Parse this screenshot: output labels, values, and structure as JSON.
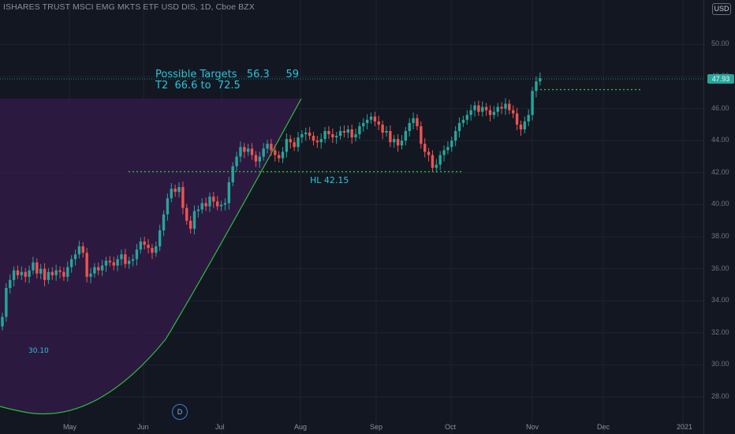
{
  "header": {
    "title": "ISHARES TRUST MSCI EMG MKTS ETF USD DIS, 1D, Cboe BZX",
    "currency": "USD"
  },
  "last_price_label": "47.93",
  "annotations": {
    "targets_line1": "Possible Targets   56.3     59",
    "targets_line2": "T2  66.6 to  72.5",
    "hl_label": "HL 42.15",
    "arc_low_label": "30.10",
    "d_badge": "D"
  },
  "colors": {
    "background": "#131722",
    "up": "#26a69a",
    "down": "#ef5350",
    "arc_fill": "#311a45",
    "arc_stroke": "#2ebd3e",
    "level_line": "#2ebd3e",
    "note_text": "#26c6da"
  },
  "chart_data": {
    "type": "candlestick",
    "title": "ISHARES TRUST MSCI EMG MKTS ETF USD DIS, 1D, Cboe BZX",
    "ylim": [
      27,
      52.5
    ],
    "yticks": [
      28,
      30,
      32,
      34,
      36,
      38,
      40,
      42,
      44,
      46,
      48,
      50
    ],
    "x_month_ticks": [
      {
        "label": "May",
        "date": "2020-05-01"
      },
      {
        "label": "Jun",
        "date": "2020-06-01"
      },
      {
        "label": "Jul",
        "date": "2020-07-01"
      },
      {
        "label": "Aug",
        "date": "2020-08-01"
      },
      {
        "label": "Sep",
        "date": "2020-09-01"
      },
      {
        "label": "Oct",
        "date": "2020-10-01"
      },
      {
        "label": "Nov",
        "date": "2020-11-01"
      },
      {
        "label": "Dec",
        "date": "2020-12-01"
      },
      {
        "label": "2021",
        "date": "2021-01-01"
      }
    ],
    "grid": true,
    "closes": [
      33.0,
      34.8,
      35.3,
      35.9,
      35.6,
      35.8,
      35.5,
      35.9,
      36.4,
      35.7,
      36.0,
      35.3,
      35.8,
      35.6,
      35.9,
      35.8,
      35.5,
      36.1,
      36.6,
      36.9,
      37.4,
      37.0,
      35.5,
      35.7,
      36.1,
      35.9,
      36.2,
      36.5,
      36.4,
      36.2,
      36.6,
      36.9,
      36.3,
      36.5,
      36.6,
      37.2,
      37.7,
      37.5,
      37.3,
      37.0,
      37.4,
      38.4,
      39.4,
      40.4,
      41.0,
      40.8,
      41.1,
      39.8,
      39.0,
      38.5,
      39.6,
      39.7,
      40.1,
      39.9,
      40.5,
      40.2,
      39.9,
      40.0,
      40.1,
      41.4,
      42.4,
      43.0,
      43.6,
      43.3,
      43.5,
      43.1,
      42.7,
      43.0,
      43.5,
      43.8,
      43.4,
      43.1,
      42.9,
      43.3,
      44.1,
      43.9,
      43.6,
      44.2,
      44.4,
      44.5,
      44.3,
      44.0,
      43.9,
      44.1,
      44.6,
      44.4,
      44.2,
      44.3,
      44.6,
      44.5,
      44.7,
      44.2,
      44.4,
      44.9,
      45.1,
      45.3,
      45.5,
      45.2,
      45.0,
      44.5,
      44.6,
      43.9,
      44.1,
      43.7,
      44.0,
      44.6,
      45.1,
      45.4,
      44.9,
      43.8,
      43.3,
      43.1,
      42.3,
      42.5,
      43.1,
      43.4,
      43.6,
      44.0,
      44.6,
      45.1,
      45.3,
      45.6,
      45.9,
      46.2,
      45.8,
      46.1,
      45.9,
      45.6,
      45.8,
      46.1,
      46.0,
      46.3,
      45.9,
      45.7,
      45.0,
      44.7,
      45.2,
      45.6,
      47.1,
      47.7,
      47.9
    ],
    "annotations": [
      {
        "text": "HL 42.15",
        "value": 42.15
      },
      {
        "text": "30.10",
        "value": 30.1
      },
      {
        "text": "Possible Targets   56.3     59"
      },
      {
        "text": "T2  66.6 to  72.5"
      }
    ]
  }
}
